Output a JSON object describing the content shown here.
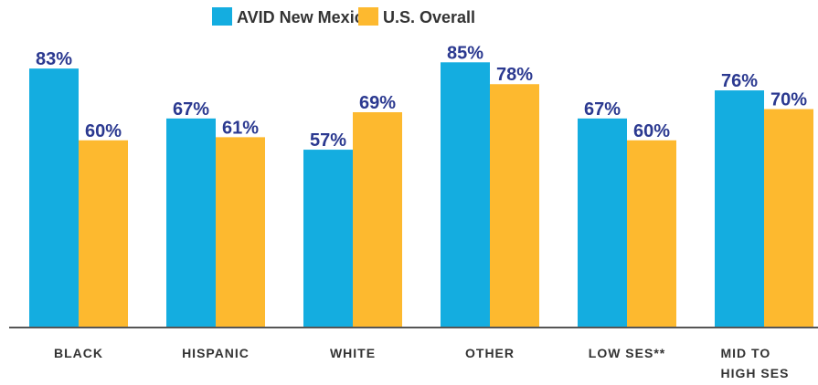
{
  "chart_data": {
    "type": "bar",
    "categories": [
      "BLACK",
      "HISPANIC",
      "WHITE",
      "OTHER",
      "LOW SES**",
      "MID TO HIGH SES"
    ],
    "series": [
      {
        "name": "AVID New Mexico",
        "color": "#14ade0",
        "values": [
          83,
          67,
          57,
          85,
          67,
          76
        ],
        "value_labels": [
          "83%",
          "67%",
          "57%",
          "85%",
          "67%",
          "76%"
        ]
      },
      {
        "name": "U.S. Overall",
        "color": "#fdb92f",
        "values": [
          60,
          61,
          69,
          78,
          60,
          70
        ],
        "value_labels": [
          "60%",
          "61%",
          "69%",
          "78%",
          "60%",
          "70%"
        ]
      }
    ],
    "ylim": [
      0,
      100
    ],
    "legend": "top"
  }
}
